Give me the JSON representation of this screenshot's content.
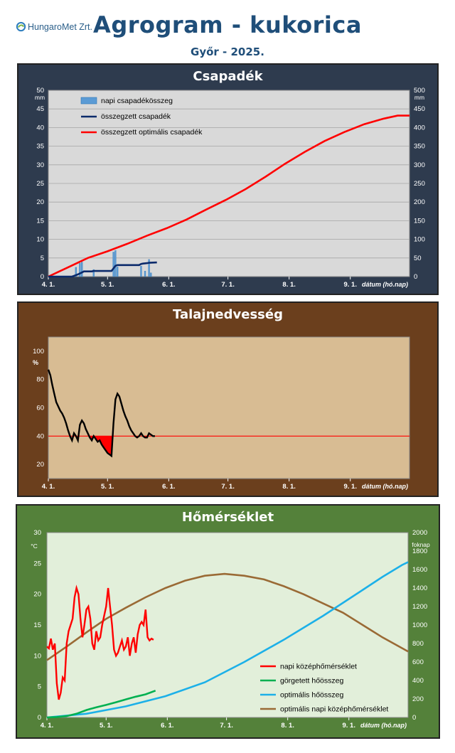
{
  "header": {
    "logo_text": "HungaroMet Zrt.",
    "title": "Agrogram - kukorica",
    "subtitle": "Győr - 2025."
  },
  "colors": {
    "panel_precip": "#2e3b4e",
    "panel_soil": "#6b3f1d",
    "panel_temp": "#54813a",
    "bar_blue": "#5b9bd5",
    "dark_blue": "#0b2a6b",
    "red": "#ff0000",
    "green": "#00b050",
    "light_blue": "#1cb0e8",
    "brown": "#9a6a35"
  },
  "chart_data": [
    {
      "type": "bar+line",
      "title": "Csapadék",
      "xlabel": "dátum (hó.nap)",
      "x_ticks": [
        "4. 1.",
        "5. 1.",
        "6. 1.",
        "7. 1.",
        "8. 1.",
        "9. 1."
      ],
      "x_range_days": [
        0,
        183
      ],
      "y_left_unit": "mm",
      "y_right_unit": "mm",
      "y_left_ticks": [
        "0",
        "5",
        "10",
        "15",
        "20",
        "25",
        "30",
        "35",
        "40",
        "45",
        "50"
      ],
      "y_right_ticks": [
        "0",
        "50",
        "100",
        "150",
        "200",
        "250",
        "300",
        "350",
        "400",
        "450",
        "500"
      ],
      "ylim_left": [
        0,
        50
      ],
      "ylim_right": [
        0,
        500
      ],
      "legend": [
        "napi csapadékösszeg",
        "összegzett csapadék",
        "összegzett optimális csapadék"
      ],
      "legend_position": "top-left",
      "grid": true,
      "bars_daily_mm": [
        [
          14,
          2.5
        ],
        [
          16,
          3.6
        ],
        [
          17,
          3.9
        ],
        [
          23,
          1.9
        ],
        [
          33,
          6.6
        ],
        [
          34,
          7.0
        ],
        [
          35,
          2.6
        ],
        [
          47,
          2.8
        ],
        [
          49,
          1.5
        ],
        [
          51,
          4.6
        ],
        [
          52,
          1.0
        ]
      ],
      "cumulative_mm": [
        [
          0,
          0
        ],
        [
          12,
          0
        ],
        [
          13,
          2
        ],
        [
          15,
          6
        ],
        [
          17,
          11
        ],
        [
          18,
          14
        ],
        [
          22,
          14
        ],
        [
          23,
          15
        ],
        [
          32,
          15
        ],
        [
          33,
          22
        ],
        [
          34,
          29
        ],
        [
          35,
          31
        ],
        [
          46,
          31
        ],
        [
          47,
          34
        ],
        [
          48,
          35
        ],
        [
          50,
          36
        ],
        [
          51,
          37
        ],
        [
          55,
          38
        ]
      ],
      "optimal_cumulative_mm": [
        [
          0,
          0
        ],
        [
          10,
          25
        ],
        [
          20,
          50
        ],
        [
          30,
          68
        ],
        [
          40,
          88
        ],
        [
          50,
          110
        ],
        [
          60,
          130
        ],
        [
          70,
          153
        ],
        [
          80,
          180
        ],
        [
          90,
          206
        ],
        [
          100,
          235
        ],
        [
          110,
          268
        ],
        [
          120,
          303
        ],
        [
          130,
          335
        ],
        [
          140,
          364
        ],
        [
          150,
          388
        ],
        [
          160,
          409
        ],
        [
          170,
          424
        ],
        [
          177,
          432
        ],
        [
          183,
          432
        ]
      ]
    },
    {
      "type": "line",
      "title": "Talajnedvesség",
      "xlabel": "dátum (hó.nap)",
      "x_ticks": [
        "4. 1.",
        "5. 1.",
        "6. 1.",
        "7. 1.",
        "8. 1.",
        "9. 1."
      ],
      "x_range_days": [
        0,
        183
      ],
      "y_unit": "%",
      "y_ticks": [
        "20",
        "40",
        "60",
        "80",
        "100"
      ],
      "ylim": [
        10,
        110
      ],
      "threshold_percent": 40,
      "grid": false,
      "soil_moisture_percent": [
        [
          0,
          87
        ],
        [
          1,
          83
        ],
        [
          2,
          76
        ],
        [
          3,
          70
        ],
        [
          4,
          64
        ],
        [
          5,
          61
        ],
        [
          6,
          58
        ],
        [
          7,
          56
        ],
        [
          8,
          53
        ],
        [
          9,
          49
        ],
        [
          10,
          44
        ],
        [
          11,
          40
        ],
        [
          12,
          37
        ],
        [
          13,
          42
        ],
        [
          14,
          40
        ],
        [
          15,
          37
        ],
        [
          16,
          48
        ],
        [
          17,
          51
        ],
        [
          18,
          49
        ],
        [
          19,
          45
        ],
        [
          20,
          42
        ],
        [
          21,
          39
        ],
        [
          22,
          37
        ],
        [
          23,
          40
        ],
        [
          24,
          38
        ],
        [
          25,
          36
        ],
        [
          26,
          37
        ],
        [
          27,
          34
        ],
        [
          28,
          32
        ],
        [
          29,
          30
        ],
        [
          30,
          28
        ],
        [
          31,
          27
        ],
        [
          32,
          26
        ],
        [
          33,
          49
        ],
        [
          34,
          66
        ],
        [
          35,
          70
        ],
        [
          36,
          68
        ],
        [
          37,
          63
        ],
        [
          38,
          58
        ],
        [
          39,
          54
        ],
        [
          40,
          51
        ],
        [
          41,
          47
        ],
        [
          42,
          44
        ],
        [
          43,
          42
        ],
        [
          44,
          40
        ],
        [
          45,
          39
        ],
        [
          46,
          40
        ],
        [
          47,
          42
        ],
        [
          48,
          40
        ],
        [
          49,
          39
        ],
        [
          50,
          39
        ],
        [
          51,
          42
        ],
        [
          52,
          41
        ],
        [
          53,
          40
        ],
        [
          54,
          40
        ]
      ]
    },
    {
      "type": "line",
      "title": "Hőmérséklet",
      "xlabel": "dátum (hó.nap)",
      "x_ticks": [
        "4. 1.",
        "5. 1.",
        "6. 1.",
        "7. 1.",
        "8. 1.",
        "9. 1."
      ],
      "x_range_days": [
        0,
        183
      ],
      "y_left_unit": "°C",
      "y_right_unit": "foknap",
      "y_left_ticks": [
        "0",
        "5",
        "10",
        "15",
        "20",
        "25",
        "30"
      ],
      "y_right_ticks": [
        "0",
        "200",
        "400",
        "600",
        "800",
        "1000",
        "1200",
        "1400",
        "1600",
        "1800",
        "2000"
      ],
      "ylim_left": [
        0,
        30
      ],
      "ylim_right": [
        0,
        2000
      ],
      "legend": [
        "napi középhőmérséklet",
        "görgetett hőösszeg",
        "optimális hőösszeg",
        "optimális napi középhőmérséklet"
      ],
      "legend_position": "bottom-right",
      "grid": false,
      "daily_mean_temp_c": [
        [
          0,
          11.5
        ],
        [
          1,
          11.2
        ],
        [
          2,
          12.8
        ],
        [
          3,
          11.0
        ],
        [
          4,
          12.0
        ],
        [
          5,
          5.5
        ],
        [
          6,
          2.9
        ],
        [
          7,
          4.0
        ],
        [
          8,
          6.5
        ],
        [
          9,
          6.0
        ],
        [
          10,
          12.0
        ],
        [
          11,
          14.0
        ],
        [
          12,
          15.0
        ],
        [
          13,
          16.0
        ],
        [
          14,
          19.5
        ],
        [
          15,
          21.0
        ],
        [
          16,
          20.0
        ],
        [
          17,
          16.0
        ],
        [
          18,
          13.0
        ],
        [
          19,
          15.0
        ],
        [
          20,
          17.5
        ],
        [
          21,
          18.0
        ],
        [
          22,
          16.0
        ],
        [
          23,
          12.0
        ],
        [
          24,
          11.0
        ],
        [
          25,
          14.0
        ],
        [
          26,
          12.5
        ],
        [
          27,
          13.0
        ],
        [
          28,
          15.0
        ],
        [
          29,
          16.5
        ],
        [
          30,
          18.0
        ],
        [
          31,
          21.0
        ],
        [
          32,
          18.0
        ],
        [
          33,
          15.0
        ],
        [
          34,
          11.0
        ],
        [
          35,
          10.0
        ],
        [
          36,
          10.5
        ],
        [
          37,
          11.5
        ],
        [
          38,
          12.5
        ],
        [
          39,
          11.0
        ],
        [
          40,
          11.5
        ],
        [
          41,
          13.0
        ],
        [
          42,
          10.0
        ],
        [
          43,
          12.0
        ],
        [
          44,
          13.0
        ],
        [
          45,
          10.5
        ],
        [
          46,
          13.5
        ],
        [
          47,
          15.0
        ],
        [
          48,
          15.5
        ],
        [
          49,
          15.0
        ],
        [
          50,
          17.5
        ],
        [
          51,
          13.0
        ],
        [
          52,
          12.5
        ],
        [
          53,
          12.8
        ],
        [
          54,
          12.6
        ]
      ],
      "rolling_heat_sum_foknap": [
        [
          0,
          0
        ],
        [
          5,
          5
        ],
        [
          10,
          15
        ],
        [
          15,
          40
        ],
        [
          20,
          80
        ],
        [
          25,
          110
        ],
        [
          30,
          135
        ],
        [
          35,
          165
        ],
        [
          40,
          195
        ],
        [
          45,
          225
        ],
        [
          50,
          250
        ],
        [
          55,
          290
        ]
      ],
      "optimal_heat_sum_foknap": [
        [
          0,
          0
        ],
        [
          20,
          40
        ],
        [
          40,
          120
        ],
        [
          60,
          230
        ],
        [
          80,
          380
        ],
        [
          100,
          600
        ],
        [
          120,
          840
        ],
        [
          140,
          1100
        ],
        [
          160,
          1380
        ],
        [
          170,
          1520
        ],
        [
          180,
          1650
        ],
        [
          183,
          1680
        ]
      ],
      "optimal_daily_mean_c": [
        [
          0,
          9.3
        ],
        [
          10,
          11.5
        ],
        [
          20,
          13.8
        ],
        [
          30,
          16.0
        ],
        [
          40,
          17.8
        ],
        [
          50,
          19.5
        ],
        [
          60,
          21.0
        ],
        [
          70,
          22.2
        ],
        [
          80,
          23.0
        ],
        [
          90,
          23.3
        ],
        [
          100,
          23.0
        ],
        [
          110,
          22.4
        ],
        [
          120,
          21.3
        ],
        [
          130,
          20.0
        ],
        [
          140,
          18.5
        ],
        [
          150,
          17.0
        ],
        [
          160,
          15.0
        ],
        [
          170,
          13.0
        ],
        [
          183,
          10.7
        ]
      ]
    }
  ]
}
